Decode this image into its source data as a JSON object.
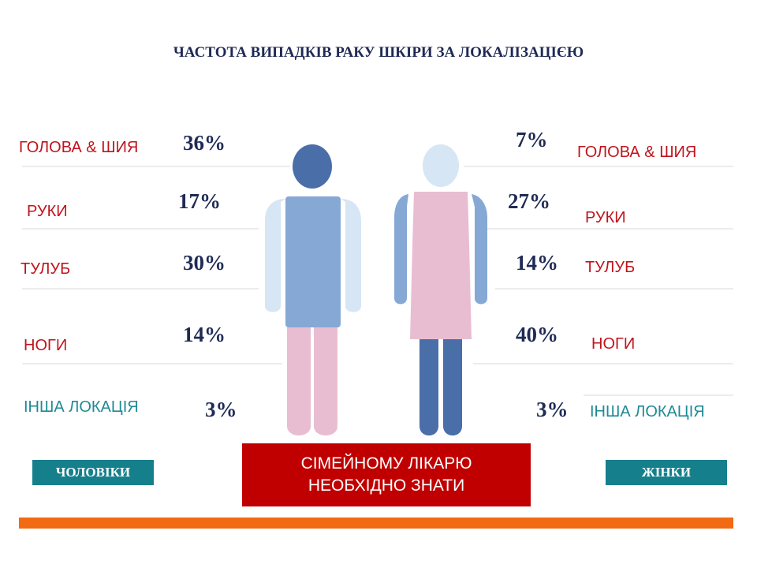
{
  "title": "ЧАСТОТА ВИПАДКІВ РАКУ ШКІРИ ЗА ЛОКАЛІЗАЦІЄЮ",
  "chart_data": {
    "type": "table",
    "categories": [
      "ГОЛОВА & ШИЯ",
      "РУКИ",
      "ТУЛУБ",
      "НОГИ",
      "ІНША ЛОКАЦІЯ"
    ],
    "series": [
      {
        "name": "ЧОЛОВІКИ",
        "values": [
          36,
          17,
          30,
          14,
          3
        ],
        "labels": [
          "36%",
          "17%",
          "30%",
          "14%",
          "3%"
        ]
      },
      {
        "name": "ЖІНКИ",
        "values": [
          7,
          27,
          14,
          40,
          3
        ],
        "labels": [
          "7%",
          "27%",
          "14%",
          "40%",
          "3%"
        ]
      }
    ]
  },
  "legend": {
    "men": "ЧОЛОВІКИ",
    "women": "ЖІНКИ"
  },
  "cta": {
    "line1": "СІМЕЙНОМУ ЛІКАРЮ",
    "line2": "НЕОБХІДНО ЗНАТИ"
  },
  "colors": {
    "title": "#1f2a55",
    "label_red": "#c0141d",
    "label_teal": "#1f8a96",
    "badge": "#15808c",
    "cta_bg": "#c00000",
    "footer": "#f26a12",
    "figure_dark": "#4a6ea8",
    "figure_mid": "#86a8d4",
    "figure_light": "#d6e6f4",
    "figure_pink": "#e9bdd1"
  },
  "icons": [
    "man-figure-icon",
    "woman-figure-icon"
  ]
}
